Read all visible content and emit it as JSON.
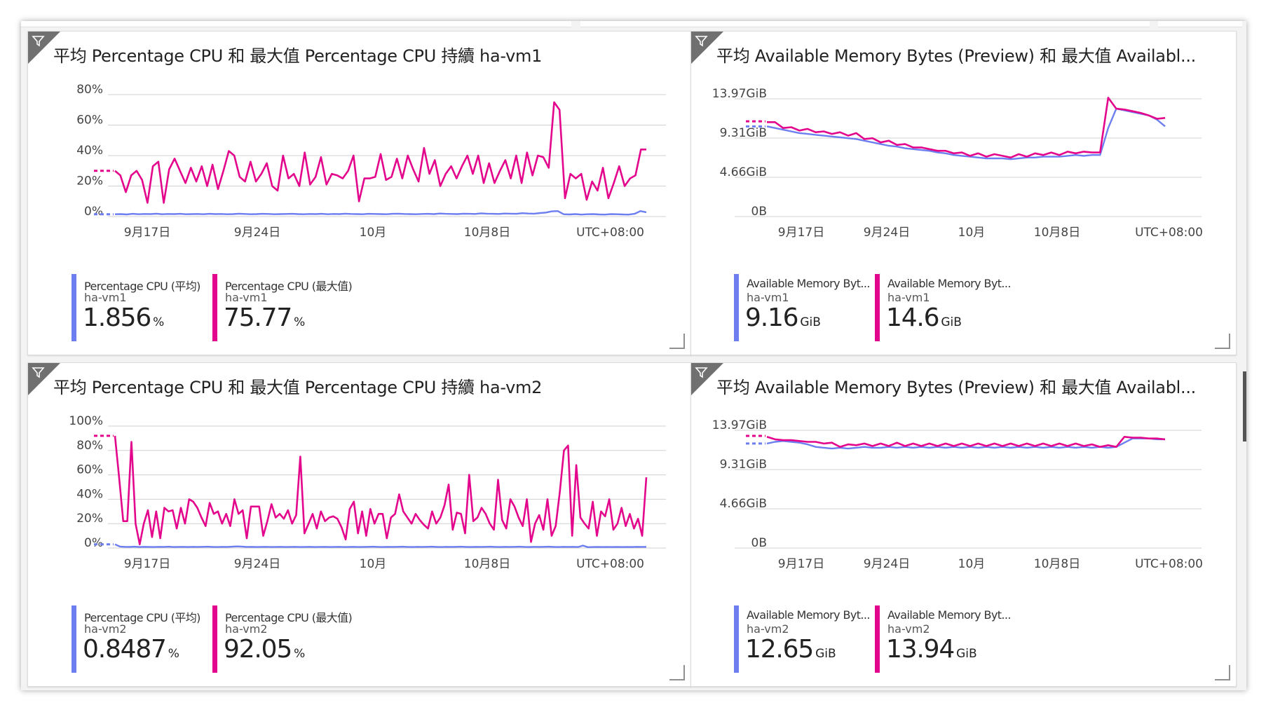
{
  "colors": {
    "avg": "#6c7ef0",
    "max": "#e3068c",
    "grid": "#d0d0d0"
  },
  "tiles": [
    {
      "title": "平均 Percentage CPU 和 最大值 Percentage CPU 持續 ha-vm1",
      "chart_data": {
        "type": "line",
        "x_ticks": [
          "9月17日",
          "9月24日",
          "10月",
          "10月8日"
        ],
        "timezone": "UTC+08:00",
        "y_ticks": [
          "80%",
          "60%",
          "40%",
          "20%",
          "0%"
        ],
        "ylim": [
          0,
          80
        ],
        "series": [
          {
            "name": "Percentage CPU (平均)",
            "color": "#6c7ef0",
            "values": [
              1.5,
              1.6,
              1.4,
              1.8,
              1.5,
              1.7,
              1.6,
              1.9,
              1.5,
              1.7,
              1.6,
              1.8,
              1.5,
              1.6,
              1.7,
              1.5,
              1.8,
              1.6,
              1.7,
              1.5,
              1.6,
              1.9,
              1.7,
              1.5,
              1.6,
              1.8,
              1.7,
              1.5,
              1.6,
              1.7,
              1.8,
              1.6,
              1.5,
              1.7,
              1.6,
              1.8,
              1.5,
              1.7,
              1.6,
              1.9,
              1.7,
              1.6,
              1.5,
              1.8,
              1.7,
              1.6,
              1.5,
              1.8,
              1.9,
              1.7,
              1.6,
              1.5,
              1.7,
              1.8,
              1.6,
              2.0,
              1.8,
              1.7,
              1.6,
              1.9,
              1.8,
              1.7,
              2.1,
              1.9,
              1.8,
              1.7,
              2.0,
              1.9,
              1.8,
              2.2,
              2.0,
              1.9,
              2.3,
              2.6,
              3.4,
              3.6,
              1.5,
              1.4,
              1.6,
              1.3,
              1.5,
              1.6,
              1.4,
              1.3,
              1.6,
              1.5,
              1.4,
              1.3,
              1.8,
              3.6,
              2.8
            ]
          },
          {
            "name": "Percentage CPU (最大值)",
            "color": "#e3068c",
            "values": [
              30,
              27,
              16,
              27,
              30,
              24,
              9,
              33,
              36,
              9,
              31,
              38,
              30,
              22,
              32,
              23,
              33,
              20,
              34,
              18,
              30,
              43,
              40,
              26,
              23,
              36,
              23,
              28,
              35,
              20,
              17,
              40,
              25,
              28,
              20,
              42,
              21,
              26,
              39,
              21,
              28,
              27,
              25,
              30,
              40,
              10,
              25,
              25,
              26,
              41,
              24,
              26,
              38,
              25,
              40,
              31,
              23,
              45,
              28,
              37,
              20,
              28,
              33,
              25,
              33,
              40,
              28,
              40,
              22,
              35,
              22,
              30,
              37,
              25,
              40,
              22,
              42,
              27,
              40,
              39,
              32,
              75,
              70,
              12,
              28,
              25,
              28,
              11,
              23,
              17,
              32,
              12,
              22,
              33,
              20,
              25,
              27,
              44,
              44
            ]
          }
        ],
        "dashes": {
          "avg": 1.5,
          "max": 30
        }
      },
      "legend": [
        {
          "name": "Percentage CPU (平均)",
          "host": "ha-vm1",
          "value": "1.856",
          "unit": "%",
          "color": "#6c7ef0"
        },
        {
          "name": "Percentage CPU (最大值)",
          "host": "ha-vm1",
          "value": "75.77",
          "unit": "%",
          "color": "#e3068c"
        }
      ]
    },
    {
      "title": "平均 Available Memory Bytes (Preview) 和 最大值 Availabl...",
      "chart_data": {
        "type": "line",
        "x_ticks": [
          "9月17日",
          "9月24日",
          "10月",
          "10月8日"
        ],
        "timezone": "UTC+08:00",
        "y_ticks": [
          "13.97GiB",
          "9.31GiB",
          "4.66GiB",
          "0B"
        ],
        "ylim": [
          0,
          13.97
        ],
        "series": [
          {
            "name": "Available Memory Bytes (平均)",
            "color": "#6c7ef0",
            "values": [
              10.7,
              10.5,
              10.3,
              10.1,
              9.9,
              9.8,
              9.7,
              9.6,
              9.5,
              9.4,
              9.3,
              9.2,
              9.0,
              8.8,
              8.6,
              8.4,
              8.3,
              8.1,
              8.0,
              7.9,
              7.8,
              7.6,
              7.5,
              7.3,
              7.2,
              7.1,
              7.0,
              6.9,
              6.9,
              6.9,
              6.8,
              6.9,
              7.0,
              7.0,
              7.1,
              7.1,
              7.1,
              7.2,
              7.3,
              7.2,
              7.3,
              7.3,
              10.5,
              12.8,
              12.6,
              12.4,
              12.2,
              12.0,
              11.5,
              10.7
            ]
          },
          {
            "name": "Available Memory Bytes (最大值)",
            "color": "#e3068c",
            "values": [
              11.2,
              11.2,
              10.5,
              10.6,
              10.2,
              10.4,
              10.0,
              10.1,
              9.8,
              10.0,
              9.6,
              9.9,
              9.2,
              9.3,
              8.8,
              9.0,
              8.5,
              8.6,
              8.2,
              8.2,
              8.0,
              7.8,
              7.8,
              7.5,
              7.6,
              7.2,
              7.5,
              7.1,
              7.4,
              7.2,
              7.0,
              7.4,
              7.1,
              7.5,
              7.3,
              7.6,
              7.3,
              7.7,
              7.5,
              7.7,
              7.6,
              7.6,
              14.1,
              12.8,
              12.7,
              12.5,
              12.3,
              12.0,
              11.6,
              11.7
            ]
          }
        ],
        "dashes": {
          "avg": 10.7,
          "max": 11.3
        }
      },
      "legend": [
        {
          "name": "Available Memory Byt...",
          "host": "ha-vm1",
          "value": "9.16",
          "unit": "GiB",
          "color": "#6c7ef0"
        },
        {
          "name": "Available Memory Byt...",
          "host": "ha-vm1",
          "value": "14.6",
          "unit": "GiB",
          "color": "#e3068c"
        }
      ]
    },
    {
      "title": "平均 Percentage CPU 和 最大值 Percentage CPU 持續 ha-vm2",
      "chart_data": {
        "type": "line",
        "x_ticks": [
          "9月17日",
          "9月24日",
          "10月",
          "10月8日"
        ],
        "timezone": "UTC+08:00",
        "y_ticks": [
          "100%",
          "80%",
          "60%",
          "40%",
          "20%",
          "0%"
        ],
        "ylim": [
          0,
          100
        ],
        "series": [
          {
            "name": "Percentage CPU (平均)",
            "color": "#6c7ef0",
            "values": [
              3.0,
              1.2,
              1.0,
              0.9,
              1.1,
              0.8,
              1.0,
              0.9,
              0.8,
              1.0,
              0.9,
              1.1,
              0.8,
              0.9,
              1.0,
              0.8,
              1.0,
              0.9,
              1.0,
              1.1,
              0.9,
              0.8,
              1.0,
              0.9,
              1.1,
              1.3,
              1.2,
              0.9,
              1.0,
              0.8,
              0.9,
              1.0,
              0.8,
              0.9,
              1.0,
              0.8,
              0.9,
              1.0,
              0.8,
              0.9,
              1.0,
              0.8,
              0.9,
              1.0,
              0.8,
              0.9,
              1.0,
              0.8,
              0.9,
              1.0,
              0.8,
              0.9,
              1.0,
              1.1,
              0.9,
              0.8,
              1.0,
              0.9,
              1.0,
              1.1,
              0.9,
              0.8,
              1.0,
              0.9,
              1.0,
              1.1,
              0.9,
              0.8,
              1.0,
              0.9,
              1.0,
              1.1,
              0.9,
              0.8,
              1.0,
              0.9,
              1.0,
              1.1,
              0.9,
              0.8,
              1.0,
              0.9,
              1.0,
              1.1,
              0.9,
              0.8,
              1.0,
              0.9,
              1.0,
              1.1,
              0.9,
              0.8,
              1.0,
              0.9,
              1.0,
              0.8,
              2.0,
              0.7,
              0.8,
              0.9,
              0.8,
              0.9,
              0.8,
              0.9,
              0.8,
              0.9,
              0.8,
              1.0,
              0.9,
              1.0
            ]
          },
          {
            "name": "Percentage CPU (最大值)",
            "color": "#e3068c",
            "values": [
              92,
              58,
              22,
              22,
              87,
              20,
              3,
              20,
              31,
              9,
              30,
              8,
              33,
              30,
              31,
              16,
              33,
              20,
              40,
              38,
              33,
              25,
              18,
              37,
              28,
              30,
              20,
              28,
              18,
              40,
              28,
              31,
              8,
              34,
              34,
              34,
              10,
              22,
              36,
              25,
              28,
              24,
              31,
              20,
              27,
              75,
              12,
              20,
              28,
              16,
              30,
              22,
              25,
              26,
              24,
              17,
              7,
              32,
              38,
              12,
              30,
              10,
              32,
              20,
              28,
              28,
              8,
              25,
              28,
              44,
              30,
              25,
              20,
              28,
              23,
              19,
              16,
              30,
              20,
              25,
              35,
              52,
              15,
              29,
              28,
              12,
              60,
              22,
              25,
              33,
              28,
              20,
              15,
              56,
              23,
              16,
              40,
              34,
              25,
              18,
              40,
              5,
              20,
              27,
              15,
              40,
              10,
              18,
              46,
              80,
              84,
              10,
              68,
              25,
              20,
              16,
              38,
              10,
              30,
              26,
              40,
              15,
              20,
              33,
              18,
              28,
              16,
              24,
              10,
              58
            ]
          }
        ],
        "dashes": {
          "avg": 3.0,
          "max": 92
        }
      },
      "legend": [
        {
          "name": "Percentage CPU (平均)",
          "host": "ha-vm2",
          "value": "0.8487",
          "unit": "%",
          "color": "#6c7ef0"
        },
        {
          "name": "Percentage CPU (最大值)",
          "host": "ha-vm2",
          "value": "92.05",
          "unit": "%",
          "color": "#e3068c"
        }
      ]
    },
    {
      "title": "平均 Available Memory Bytes (Preview) 和 最大值 Availabl...",
      "chart_data": {
        "type": "line",
        "x_ticks": [
          "9月17日",
          "9月24日",
          "10月",
          "10月8日"
        ],
        "timezone": "UTC+08:00",
        "y_ticks": [
          "13.97GiB",
          "9.31GiB",
          "4.66GiB",
          "0B"
        ],
        "ylim": [
          0,
          13.97
        ],
        "series": [
          {
            "name": "Available Memory Bytes (平均)",
            "color": "#6c7ef0",
            "values": [
              12.4,
              12.6,
              12.7,
              12.6,
              12.5,
              12.3,
              12.0,
              11.9,
              11.8,
              11.9,
              11.8,
              11.9,
              12.0,
              11.9,
              11.9,
              12.0,
              11.9,
              12.0,
              11.9,
              12.0,
              11.9,
              12.0,
              11.9,
              12.0,
              11.9,
              12.0,
              11.9,
              12.0,
              11.9,
              12.0,
              11.9,
              12.0,
              11.9,
              12.0,
              11.9,
              12.0,
              11.9,
              12.0,
              11.9,
              12.0,
              11.9,
              12.0,
              11.9,
              12.0,
              12.5,
              13.0,
              13.0,
              13.0,
              12.9,
              12.9
            ]
          },
          {
            "name": "Available Memory Bytes (最大值)",
            "color": "#e3068c",
            "values": [
              13.2,
              12.9,
              12.8,
              12.8,
              12.7,
              12.6,
              12.6,
              12.4,
              12.5,
              12.0,
              12.3,
              12.2,
              12.4,
              12.1,
              12.4,
              12.1,
              12.5,
              12.1,
              12.4,
              12.1,
              12.4,
              12.1,
              12.4,
              12.1,
              12.4,
              12.1,
              12.4,
              12.1,
              12.4,
              12.1,
              12.4,
              12.1,
              12.4,
              12.1,
              12.4,
              12.1,
              12.4,
              12.1,
              12.4,
              12.1,
              12.3,
              12.0,
              12.2,
              12.0,
              13.2,
              13.1,
              13.1,
              13.0,
              13.0,
              12.9
            ]
          }
        ],
        "dashes": {
          "avg": 12.4,
          "max": 13.3
        }
      },
      "legend": [
        {
          "name": "Available Memory Byt...",
          "host": "ha-vm2",
          "value": "12.65",
          "unit": "GiB",
          "color": "#6c7ef0"
        },
        {
          "name": "Available Memory Byt...",
          "host": "ha-vm2",
          "value": "13.94",
          "unit": "GiB",
          "color": "#e3068c"
        }
      ]
    }
  ]
}
